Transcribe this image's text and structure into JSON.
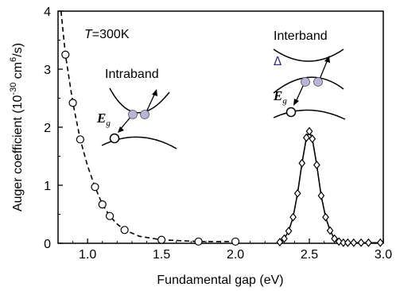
{
  "chart_data": {
    "type": "scatter",
    "xlabel": "Fundamental gap (eV)",
    "ylabel": "Auger coefficient (10",
    "ylabel_exp1": "-30",
    "ylabel_mid": " cm",
    "ylabel_exp2": "6",
    "ylabel_end": "/s)",
    "xlim": [
      0.8,
      3.0
    ],
    "ylim": [
      0,
      4
    ],
    "xticks": [
      "1.0",
      "1.5",
      "2.0",
      "2.5",
      "3.0"
    ],
    "yticks": [
      "0",
      "1",
      "2",
      "3",
      "4"
    ],
    "grid": false,
    "series": [
      {
        "marker": "circle",
        "line": "dashed",
        "x": [
          0.85,
          0.9,
          0.95,
          1.05,
          1.1,
          1.15,
          1.25,
          1.5,
          1.75,
          2.0
        ],
        "y": [
          3.25,
          2.42,
          1.79,
          0.97,
          0.67,
          0.47,
          0.23,
          0.06,
          0.03,
          0.03
        ],
        "curve_x": [
          0.82,
          0.85,
          0.9,
          0.95,
          1.0,
          1.05,
          1.1,
          1.15,
          1.2,
          1.25,
          1.35,
          1.5,
          1.75,
          2.0
        ],
        "curve_y": [
          4.0,
          3.25,
          2.42,
          1.79,
          1.33,
          0.97,
          0.67,
          0.47,
          0.33,
          0.23,
          0.12,
          0.06,
          0.03,
          0.03
        ]
      },
      {
        "marker": "diamond",
        "line": "solid",
        "x": [
          2.3,
          2.33,
          2.36,
          2.39,
          2.42,
          2.45,
          2.48,
          2.5,
          2.52,
          2.55,
          2.58,
          2.61,
          2.64,
          2.67,
          2.7,
          2.73,
          2.76,
          2.8,
          2.85,
          2.9,
          2.98
        ],
        "y": [
          0.02,
          0.08,
          0.21,
          0.45,
          0.86,
          1.38,
          1.82,
          1.93,
          1.8,
          1.35,
          0.82,
          0.45,
          0.22,
          0.08,
          0.03,
          0.01,
          0.01,
          0.01,
          0.01,
          0.01,
          0.01
        ]
      }
    ],
    "annotations": {
      "temperature_T": "T",
      "temperature_value": "=300K",
      "intraband": "Intraband",
      "interband": "Interband",
      "eg_symbol": "E",
      "eg_sub": "g",
      "delta": "Δ"
    },
    "colors": {
      "axis": "#000000",
      "electron_fill": "#b6b4d8",
      "delta": "#3a2d80"
    }
  }
}
